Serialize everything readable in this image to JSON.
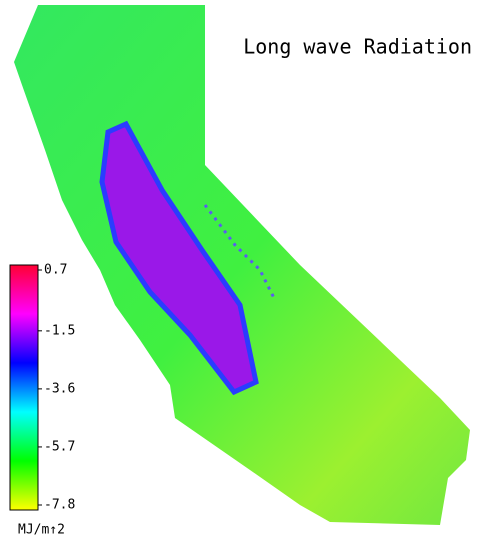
{
  "title": "Long wave Radiation",
  "colorbar": {
    "ticks": [
      0.7,
      -1.5,
      -3.6,
      -5.7,
      -7.8
    ],
    "unit": "MJ/m↑2",
    "colors": [
      "#ffff00",
      "#00ff00",
      "#00ffff",
      "#0000ff",
      "#ff00ff",
      "#ff0033"
    ]
  }
}
